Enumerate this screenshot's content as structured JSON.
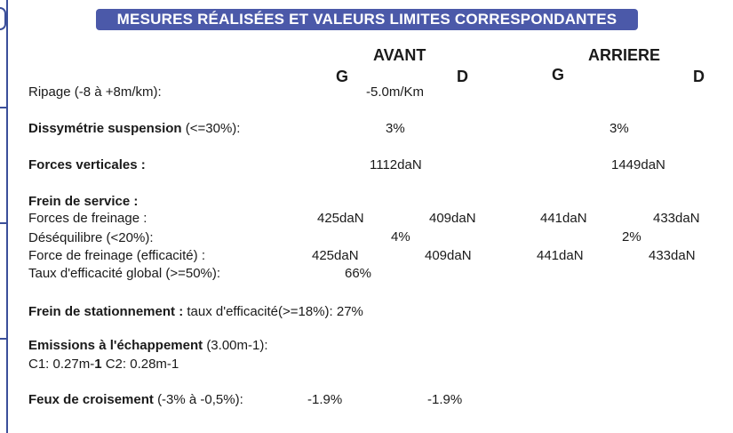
{
  "header": {
    "title": "MESURES RÉALISÉES ET VALEURS LIMITES CORRESPONDANTES"
  },
  "columns": {
    "avant": "AVANT",
    "arriere": "ARRIERE",
    "g": "G",
    "d": "D"
  },
  "ripage": {
    "label": "Ripage",
    "limit": "(-8 à +8m/km):",
    "value": "-5.0m/Km"
  },
  "dissymetrie": {
    "label": "Dissymétrie suspension",
    "limit": "(<=30%):",
    "avant": "3%",
    "arriere": "3%"
  },
  "forces_verticales": {
    "label": "Forces verticales :",
    "avant": "1112daN",
    "arriere": "1449daN"
  },
  "frein_service": {
    "title": "Frein de service :",
    "forces_label": "Forces de freinage :",
    "forces": [
      "425daN",
      "409daN",
      "441daN",
      "433daN"
    ],
    "desequilibre_label": "Déséquilibre (<20%):",
    "desequilibre": [
      "4%",
      "2%"
    ],
    "efficacite_label": "Force de freinage (efficacité) :",
    "efficacite": [
      "425daN",
      "409daN",
      "441daN",
      "433daN"
    ],
    "taux_label": "Taux d'efficacité global  (>=50%):",
    "taux": "66%"
  },
  "frein_stationnement": {
    "label": "Frein de stationnement :",
    "detail": "taux d'efficacité(>=18%): 27%"
  },
  "emissions": {
    "label": "Emissions à l'échappement",
    "limit": "(3.00m-1):",
    "c1_label": "C1: 0.27m-",
    "c1_bold": "1",
    "c2": "C2: 0.28m-1"
  },
  "feux": {
    "label": "Feux de croisement",
    "limit": "(-3% à -0,5%):",
    "values": [
      "-1.9%",
      "-1.9%"
    ]
  }
}
